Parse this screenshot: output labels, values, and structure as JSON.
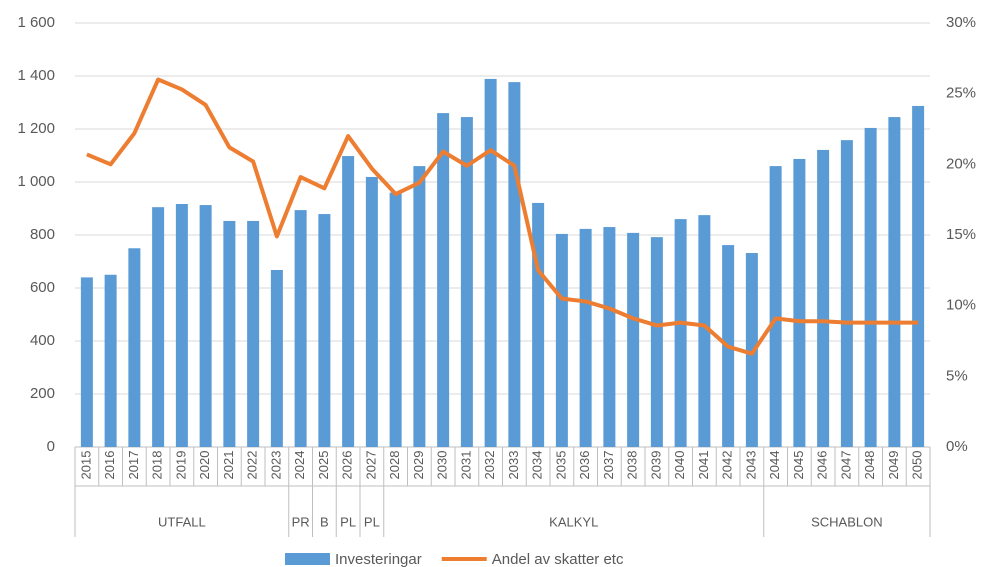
{
  "chart_data": {
    "type": "bar_line",
    "categories": [
      "2015",
      "2016",
      "2017",
      "2018",
      "2019",
      "2020",
      "2021",
      "2022",
      "2023",
      "2024",
      "2025",
      "2026",
      "2027",
      "2028",
      "2029",
      "2030",
      "2031",
      "2032",
      "2033",
      "2034",
      "2035",
      "2036",
      "2037",
      "2038",
      "2039",
      "2040",
      "2041",
      "2042",
      "2043",
      "2044",
      "2045",
      "2046",
      "2047",
      "2048",
      "2049",
      "2050"
    ],
    "groups": [
      {
        "label": "UTFALL",
        "span": 9
      },
      {
        "label": "PR",
        "span": 1
      },
      {
        "label": "B",
        "span": 1
      },
      {
        "label": "PL",
        "span": 1
      },
      {
        "label": "PL",
        "span": 1
      },
      {
        "label": "KALKYL",
        "span": 16
      },
      {
        "label": "SCHABLON",
        "span": 7
      }
    ],
    "series": [
      {
        "name": "Investeringar",
        "type": "bar",
        "color": "#5b9bd5",
        "axis": "y",
        "values": [
          640,
          650,
          750,
          905,
          917,
          913,
          853,
          853,
          668,
          894,
          879,
          1098,
          1019,
          960,
          1060,
          1260,
          1245,
          1389,
          1377,
          921,
          804,
          823,
          830,
          808,
          792,
          860,
          875,
          762,
          732,
          1060,
          1087,
          1121,
          1158,
          1204,
          1245,
          1287
        ]
      },
      {
        "name": "Andel av skatter etc",
        "type": "line",
        "color": "#ed7d31",
        "axis": "y2",
        "values": [
          20.7,
          20.0,
          22.2,
          26.0,
          25.3,
          24.2,
          21.2,
          20.2,
          14.9,
          19.1,
          18.3,
          22.0,
          19.7,
          17.9,
          18.7,
          20.9,
          19.9,
          21.0,
          19.9,
          12.5,
          10.5,
          10.3,
          9.8,
          9.1,
          8.6,
          8.8,
          8.6,
          7.1,
          6.6,
          9.1,
          8.9,
          8.9,
          8.8,
          8.8,
          8.8,
          8.8
        ]
      }
    ],
    "ylim": [
      0,
      1600
    ],
    "yticks": [
      0,
      200,
      400,
      600,
      800,
      {
        "value": 1000,
        "label": "1 000"
      },
      {
        "value": 1200,
        "label": "1 200"
      },
      {
        "value": 1400,
        "label": "1 400"
      },
      {
        "value": 1600,
        "label": "1 600"
      }
    ],
    "y2lim": [
      0,
      30
    ],
    "y2ticks": [
      {
        "value": 0,
        "label": "0%"
      },
      {
        "value": 5,
        "label": "5%"
      },
      {
        "value": 10,
        "label": "10%"
      },
      {
        "value": 15,
        "label": "15%"
      },
      {
        "value": 20,
        "label": "20%"
      },
      {
        "value": 25,
        "label": "25%"
      },
      {
        "value": 30,
        "label": "30%"
      }
    ],
    "grid": true,
    "legend": "bottom"
  }
}
